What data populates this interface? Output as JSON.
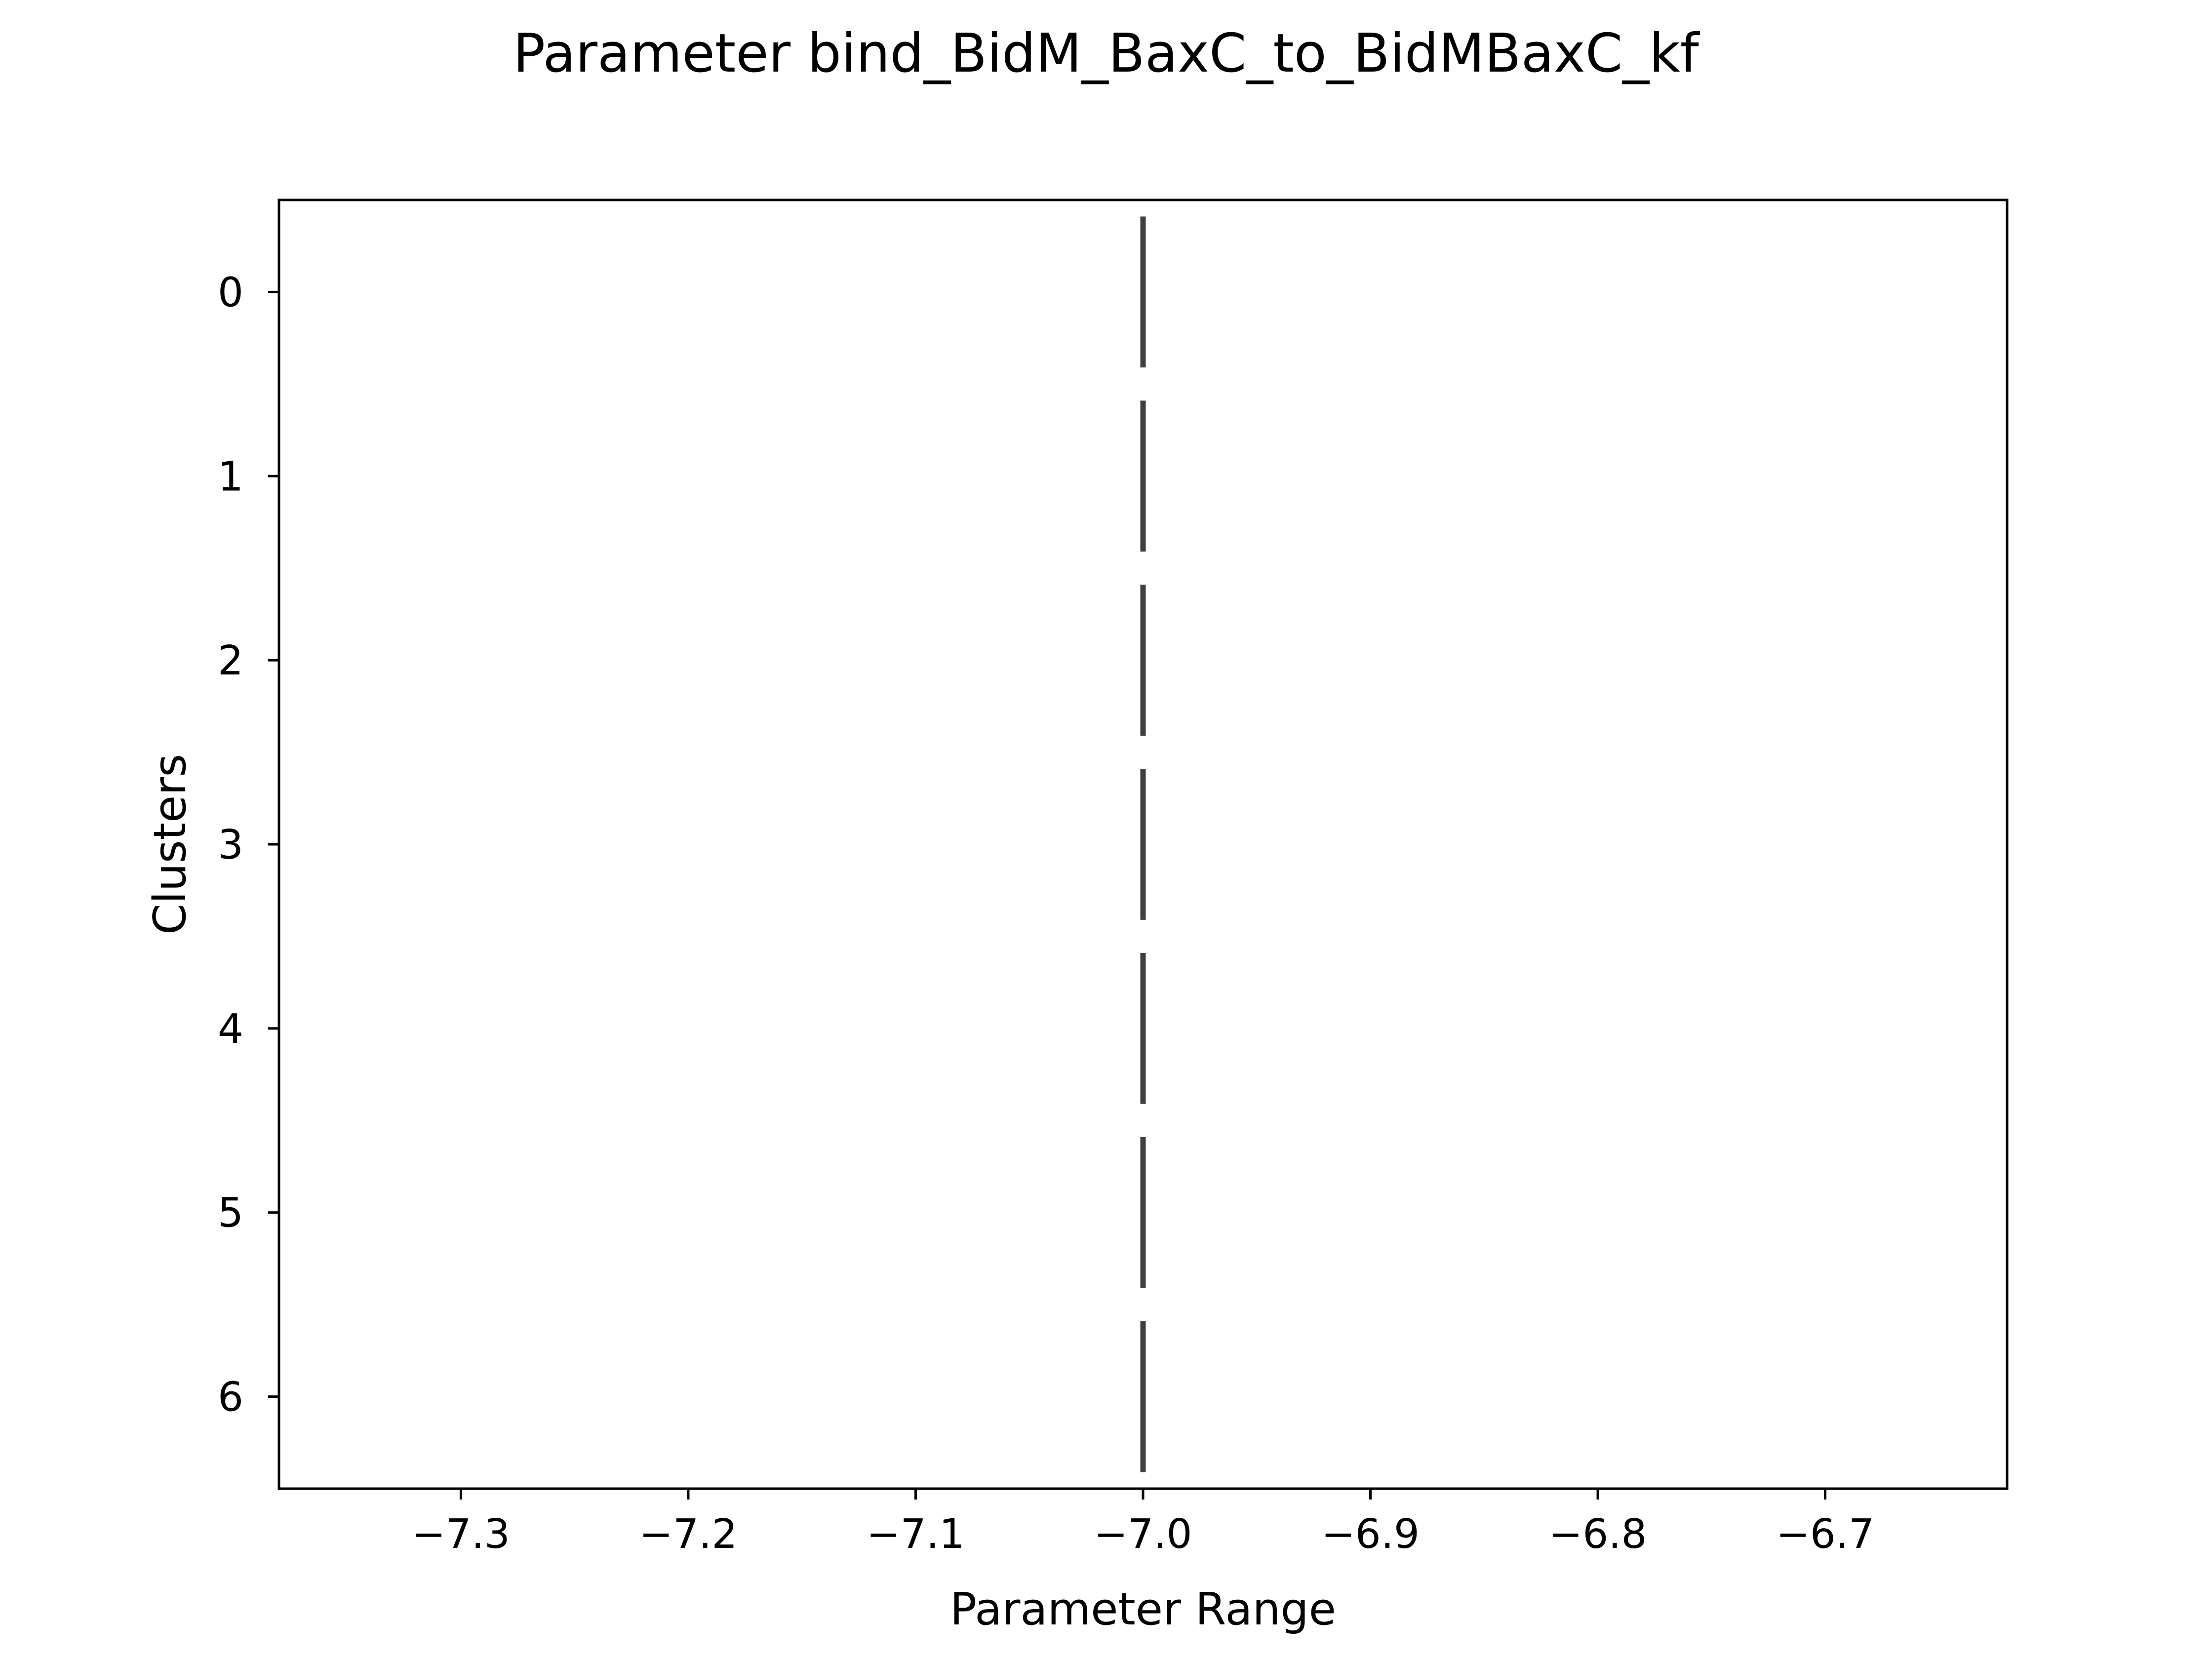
{
  "chart_data": {
    "type": "violin",
    "title": "Parameter bind_BidM_BaxC_to_BidMBaxC_kf",
    "xlabel": "Parameter Range",
    "ylabel": "Clusters",
    "orientation": "horizontal",
    "xlim": [
      -7.38,
      -6.62
    ],
    "ylim": [
      6.5,
      -0.5
    ],
    "x_ticks": [
      -7.3,
      -7.2,
      -7.1,
      -7.0,
      -6.9,
      -6.8,
      -6.7
    ],
    "x_tick_labels": [
      "−7.3",
      "−7.2",
      "−7.1",
      "−7.0",
      "−6.9",
      "−6.8",
      "−6.7"
    ],
    "categories": [
      "0",
      "1",
      "2",
      "3",
      "4",
      "5",
      "6"
    ],
    "series": [
      {
        "values": [
          -7.0,
          -7.0,
          -7.0,
          -7.0,
          -7.0,
          -7.0,
          -7.0
        ]
      }
    ],
    "mark_color": "#3f3f3f",
    "grid": false,
    "legend": false
  }
}
